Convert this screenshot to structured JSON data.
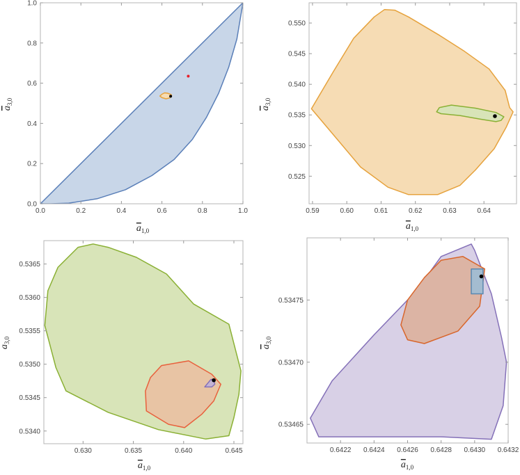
{
  "chart_data": [
    {
      "type": "area",
      "panel": "top-left",
      "xlabel": "a̅1,0",
      "xlabel_main": "a",
      "xlabel_sub": "1,0",
      "ylabel_main": "a",
      "ylabel_sub": "3,0",
      "xlim": [
        0,
        1
      ],
      "ylim": [
        0,
        1
      ],
      "xticks": [
        "0.0",
        "0.2",
        "0.4",
        "0.6",
        "0.8",
        "1.0"
      ],
      "xtick_values": [
        0,
        0.2,
        0.4,
        0.6,
        0.8,
        1.0
      ],
      "yticks": [
        "0.0",
        "0.2",
        "0.4",
        "0.6",
        "0.8",
        "1.0"
      ],
      "ytick_values": [
        0,
        0.2,
        0.4,
        0.6,
        0.8,
        1.0
      ],
      "regions": [
        {
          "name": "blue region",
          "stroke": "#5a7fb8",
          "fill": "#c8d6e8",
          "points": [
            [
              0,
              0
            ],
            [
              1,
              1
            ],
            [
              0.97,
              0.82
            ],
            [
              0.93,
              0.68
            ],
            [
              0.88,
              0.55
            ],
            [
              0.82,
              0.43
            ],
            [
              0.75,
              0.32
            ],
            [
              0.66,
              0.22
            ],
            [
              0.55,
              0.14
            ],
            [
              0.42,
              0.07
            ],
            [
              0.28,
              0.025
            ],
            [
              0.14,
              0.003
            ],
            [
              0.05,
              0
            ],
            [
              0,
              0
            ]
          ]
        },
        {
          "name": "orange region",
          "stroke": "#e6a23c",
          "fill": "#f6dcb4",
          "points": [
            [
              0.59,
              0.536
            ],
            [
              0.6,
              0.545
            ],
            [
              0.613,
              0.552
            ],
            [
              0.628,
              0.55
            ],
            [
              0.645,
              0.544
            ],
            [
              0.648,
              0.537
            ],
            [
              0.64,
              0.527
            ],
            [
              0.62,
              0.522
            ],
            [
              0.6,
              0.528
            ],
            [
              0.59,
              0.536
            ]
          ]
        }
      ],
      "points": [
        {
          "name": "red point",
          "x": 0.73,
          "y": 0.635,
          "color": "#e8202a"
        },
        {
          "name": "black point",
          "x": 0.643,
          "y": 0.535,
          "color": "#000000"
        }
      ]
    },
    {
      "type": "area",
      "panel": "top-right",
      "xlabel_main": "a",
      "xlabel_sub": "1,0",
      "ylabel_main": "a",
      "ylabel_sub": "3,0",
      "xlim": [
        0.589,
        0.6495
      ],
      "ylim": [
        0.5205,
        0.5533
      ],
      "xticks": [
        "0.59",
        "0.60",
        "0.61",
        "0.62",
        "0.63",
        "0.64"
      ],
      "xtick_values": [
        0.59,
        0.6,
        0.61,
        0.62,
        0.63,
        0.64
      ],
      "yticks": [
        "0.525",
        "0.530",
        "0.535",
        "0.540",
        "0.545",
        "0.550"
      ],
      "ytick_values": [
        0.525,
        0.53,
        0.535,
        0.54,
        0.545,
        0.55
      ],
      "regions": [
        {
          "name": "orange region",
          "stroke": "#e6a23c",
          "fill": "#f6dcb4",
          "points": [
            [
              0.5897,
              0.536
            ],
            [
              0.596,
              0.542
            ],
            [
              0.602,
              0.5475
            ],
            [
              0.608,
              0.551
            ],
            [
              0.611,
              0.5522
            ],
            [
              0.614,
              0.5521
            ],
            [
              0.618,
              0.551
            ],
            [
              0.627,
              0.548
            ],
            [
              0.634,
              0.5455
            ],
            [
              0.6415,
              0.5425
            ],
            [
              0.6462,
              0.539
            ],
            [
              0.6475,
              0.5362
            ],
            [
              0.6485,
              0.5355
            ],
            [
              0.6465,
              0.533
            ],
            [
              0.643,
              0.5295
            ],
            [
              0.6375,
              0.526
            ],
            [
              0.633,
              0.5235
            ],
            [
              0.6265,
              0.522
            ],
            [
              0.618,
              0.522
            ],
            [
              0.612,
              0.5232
            ],
            [
              0.604,
              0.5265
            ],
            [
              0.598,
              0.5305
            ],
            [
              0.5897,
              0.536
            ]
          ]
        },
        {
          "name": "green region",
          "stroke": "#8ab034",
          "fill": "#d8e4b8",
          "points": [
            [
              0.6262,
              0.5355
            ],
            [
              0.627,
              0.5362
            ],
            [
              0.6305,
              0.5366
            ],
            [
              0.6375,
              0.5361
            ],
            [
              0.6435,
              0.5354
            ],
            [
              0.6458,
              0.5347
            ],
            [
              0.645,
              0.5341
            ],
            [
              0.6435,
              0.5339
            ],
            [
              0.639,
              0.5343
            ],
            [
              0.633,
              0.5349
            ],
            [
              0.6275,
              0.5352
            ],
            [
              0.6262,
              0.5355
            ]
          ]
        }
      ],
      "points": [
        {
          "name": "black point",
          "x": 0.6432,
          "y": 0.5348,
          "color": "#000000"
        }
      ]
    },
    {
      "type": "area",
      "panel": "bottom-left",
      "xlabel_main": "a",
      "xlabel_sub": "1,0",
      "ylabel_main": "a",
      "ylabel_sub": "3,0",
      "xlim": [
        0.6261,
        0.6459
      ],
      "ylim": [
        0.53381,
        0.53685
      ],
      "xticks": [
        "0.630",
        "0.635",
        "0.640",
        "0.645"
      ],
      "xtick_values": [
        0.63,
        0.635,
        0.64,
        0.645
      ],
      "yticks": [
        "0.5340",
        "0.5345",
        "0.5350",
        "0.5355",
        "0.5360",
        "0.5365"
      ],
      "ytick_values": [
        0.534,
        0.5345,
        0.535,
        0.5355,
        0.536,
        0.5365
      ],
      "regions": [
        {
          "name": "green region",
          "stroke": "#8ab034",
          "fill": "#d8e4b8",
          "points": [
            [
              0.6262,
              0.53558
            ],
            [
              0.6265,
              0.5361
            ],
            [
              0.6275,
              0.53645
            ],
            [
              0.6295,
              0.53675
            ],
            [
              0.631,
              0.5368
            ],
            [
              0.6325,
              0.53675
            ],
            [
              0.6353,
              0.5366
            ],
            [
              0.6383,
              0.53635
            ],
            [
              0.641,
              0.5359
            ],
            [
              0.6445,
              0.5356
            ],
            [
              0.6457,
              0.5349
            ],
            [
              0.6455,
              0.53455
            ],
            [
              0.645,
              0.5342
            ],
            [
              0.6445,
              0.53393
            ],
            [
              0.6422,
              0.53388
            ],
            [
              0.6375,
              0.53402
            ],
            [
              0.6325,
              0.53428
            ],
            [
              0.6283,
              0.5346
            ],
            [
              0.6273,
              0.53495
            ],
            [
              0.6262,
              0.53558
            ]
          ]
        },
        {
          "name": "red region",
          "stroke": "#e8603c",
          "fill": "#e8c4a4",
          "points": [
            [
              0.6362,
              0.5346
            ],
            [
              0.6367,
              0.5348
            ],
            [
              0.6378,
              0.53498
            ],
            [
              0.6405,
              0.53505
            ],
            [
              0.6428,
              0.53485
            ],
            [
              0.6437,
              0.5347
            ],
            [
              0.643,
              0.53445
            ],
            [
              0.6418,
              0.53425
            ],
            [
              0.6401,
              0.53405
            ],
            [
              0.6385,
              0.5341
            ],
            [
              0.6363,
              0.5343
            ],
            [
              0.6362,
              0.5346
            ]
          ]
        },
        {
          "name": "purple region",
          "stroke": "#8470b8",
          "fill": "#c4b4d4",
          "points": [
            [
              0.6421,
              0.53466
            ],
            [
              0.6427,
              0.53477
            ],
            [
              0.643,
              0.53478
            ],
            [
              0.6431,
              0.5347
            ],
            [
              0.6428,
              0.53466
            ],
            [
              0.6421,
              0.53466
            ]
          ]
        }
      ],
      "points": [
        {
          "name": "black point",
          "x": 0.643,
          "y": 0.53476,
          "color": "#000000"
        }
      ]
    },
    {
      "type": "area",
      "panel": "bottom-right",
      "xlabel_main": "a",
      "xlabel_sub": "1,0",
      "ylabel_main": "a",
      "ylabel_sub": "3,0",
      "xlim": [
        0.642,
        0.6432
      ],
      "ylim": [
        0.534635,
        0.5348
      ],
      "xticks": [
        "0.6422",
        "0.6424",
        "0.6426",
        "0.6428",
        "0.6430",
        "0.6432"
      ],
      "xtick_values": [
        0.6422,
        0.6424,
        0.6426,
        0.6428,
        0.643,
        0.6432
      ],
      "yticks": [
        "0.53465",
        "0.53470",
        "0.53475"
      ],
      "ytick_values": [
        0.53465,
        0.5347,
        0.53475
      ],
      "regions": [
        {
          "name": "purple region",
          "stroke": "#8470b8",
          "fill": "#d8d0e6",
          "points": [
            [
              0.64202,
              0.534655
            ],
            [
              0.64215,
              0.534685
            ],
            [
              0.6424,
              0.534722
            ],
            [
              0.64265,
              0.534757
            ],
            [
              0.6428,
              0.534785
            ],
            [
              0.64298,
              0.534795
            ],
            [
              0.643,
              0.53479
            ],
            [
              0.6431,
              0.534755
            ],
            [
              0.64316,
              0.53472
            ],
            [
              0.64319,
              0.5347
            ],
            [
              0.64317,
              0.534665
            ],
            [
              0.6431,
              0.534638
            ],
            [
              0.6428,
              0.53464
            ],
            [
              0.6424,
              0.53464
            ],
            [
              0.64207,
              0.53464
            ],
            [
              0.64202,
              0.534655
            ]
          ]
        },
        {
          "name": "red region",
          "stroke": "#d8662c",
          "fill": "#dcb4a4",
          "points": [
            [
              0.64256,
              0.53473
            ],
            [
              0.6426,
              0.53475
            ],
            [
              0.6427,
              0.534768
            ],
            [
              0.6428,
              0.534782
            ],
            [
              0.64293,
              0.534785
            ],
            [
              0.64306,
              0.534775
            ],
            [
              0.64303,
              0.534745
            ],
            [
              0.6429,
              0.534725
            ],
            [
              0.6427,
              0.534715
            ],
            [
              0.6426,
              0.534718
            ],
            [
              0.64256,
              0.53473
            ]
          ]
        },
        {
          "name": "blue region",
          "stroke": "#5a88b0",
          "fill": "#a4bcd0",
          "points": [
            [
              0.64298,
              0.534766
            ],
            [
              0.64298,
              0.534775
            ],
            [
              0.64305,
              0.534775
            ],
            [
              0.64305,
              0.534755
            ],
            [
              0.64298,
              0.534755
            ],
            [
              0.64298,
              0.534766
            ]
          ]
        }
      ],
      "points": [
        {
          "name": "black point",
          "x": 0.64304,
          "y": 0.534769,
          "color": "#000000"
        }
      ]
    }
  ]
}
